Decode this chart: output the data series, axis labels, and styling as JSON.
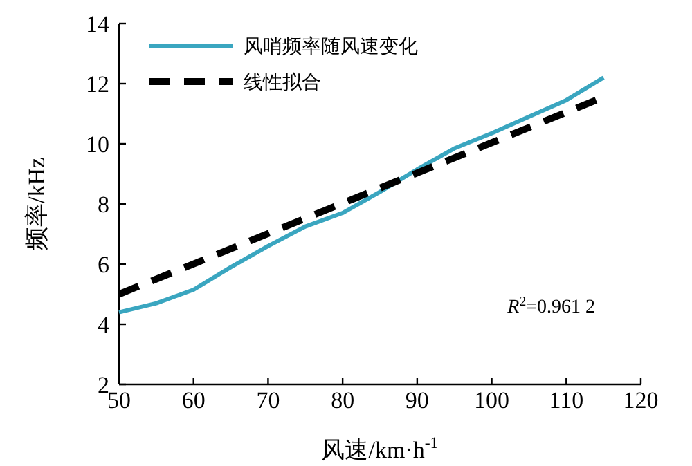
{
  "chart_data": {
    "type": "line",
    "xlabel": "风速/km·h$^{-1}$",
    "ylabel": "频率/kHz",
    "xlim": [
      50,
      120
    ],
    "ylim": [
      2,
      14
    ],
    "xticks": [
      50,
      60,
      70,
      80,
      90,
      100,
      110,
      120
    ],
    "yticks": [
      2,
      4,
      6,
      8,
      10,
      12,
      14
    ],
    "legend": "top left",
    "annotations": [
      "*R*$^{2}$=0.961 2"
    ],
    "series": [
      {
        "name": "风哨频率随风速变化",
        "color": "#3aa6c0",
        "line_style": "solid",
        "x": [
          50,
          55,
          60,
          65,
          70,
          75,
          80,
          85,
          90,
          95,
          100,
          105,
          110,
          115
        ],
        "values": [
          4.4,
          4.7,
          5.15,
          5.9,
          6.6,
          7.25,
          7.7,
          8.4,
          9.15,
          9.85,
          10.35,
          10.9,
          11.45,
          12.2
        ]
      },
      {
        "name": "线性拟合",
        "color": "#000000",
        "line_style": "dashed",
        "x": [
          50,
          114
        ],
        "values": [
          5.0,
          11.45
        ]
      }
    ]
  }
}
